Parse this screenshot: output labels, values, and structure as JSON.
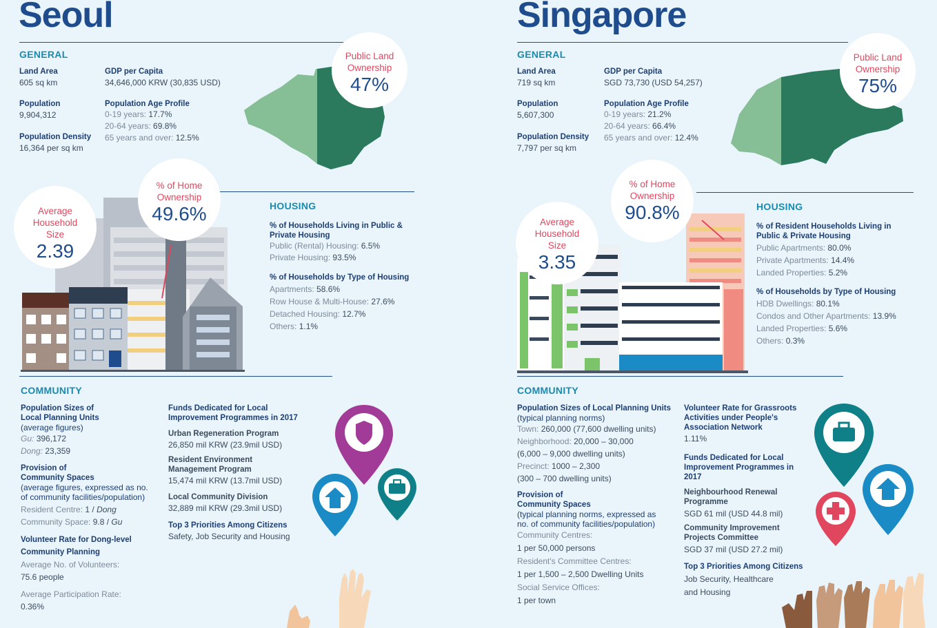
{
  "seoul": {
    "city": "Seoul",
    "general": {
      "heading": "GENERAL",
      "land_area_label": "Land Area",
      "land_area": "605 sq km",
      "population_label": "Population",
      "population": "9,904,312",
      "density_label": "Population Density",
      "density": "16,364 per sq km",
      "gdp_label": "GDP per Capita",
      "gdp": "34,646,000 KRW (30,835 USD)",
      "age_label": "Population Age Profile",
      "age1_label": "0-19 years:",
      "age1": "17.7%",
      "age2_label": "20-64 years:",
      "age2": "69.8%",
      "age3_label": "65 years and over:",
      "age3": "12.5%"
    },
    "land_ownership": {
      "label_line1": "Public Land",
      "label_line2": "Ownership",
      "value": "47%"
    },
    "home_ownership": {
      "label_line1": "% of Home",
      "label_line2": "Ownership",
      "value": "49.6%"
    },
    "household_size": {
      "label_line1": "Average",
      "label_line2": "Household",
      "label_line3": "Size",
      "value": "2.39"
    },
    "housing": {
      "heading": "HOUSING",
      "q1_line1": "% of Households Living in Public &",
      "q1_line2": "Private Housing",
      "q1_items": [
        {
          "label": "Public (Rental) Housing:",
          "value": "6.5%"
        },
        {
          "label": "Private Housing:",
          "value": "93.5%"
        }
      ],
      "q2": "% of Households by Type of Housing",
      "q2_items": [
        {
          "label": "Apartments:",
          "value": "58.6%"
        },
        {
          "label": "Row House & Multi-House:",
          "value": "27.6%"
        },
        {
          "label": "Detached Housing:",
          "value": "12.7%"
        },
        {
          "label": "Others:",
          "value": "1.1%"
        }
      ]
    },
    "community": {
      "heading": "COMMUNITY",
      "pop_line1": "Population Sizes of",
      "pop_line2": "Local Planning Units",
      "pop_note": "(average figures)",
      "gu_label": "Gu:",
      "gu": "396,172",
      "dong_label": "Dong:",
      "dong": "23,359",
      "prov_line1": "Provision of",
      "prov_line2": "Community Spaces",
      "prov_note1": "(average figures, expressed as no.",
      "prov_note2": "of community facilities/population)",
      "rc_label": "Resident Centre:",
      "rc_value": "1 /",
      "rc_unit": "Dong",
      "cs_label": "Community Space:",
      "cs_value": "9.8 /",
      "cs_unit": "Gu",
      "vol_line1": "Volunteer Rate for Dong-level",
      "vol_line2": "Community Planning",
      "avg_vol_label": "Average No. of Volunteers:",
      "avg_vol": "75.6 people",
      "avg_part_label": "Average Participation Rate:",
      "avg_part": "0.36%",
      "funds_line1": "Funds Dedicated for Local",
      "funds_line2": "Improvement Programmes in 2017",
      "prog1": "Urban Regeneration Program",
      "prog1_value": "26,850 mil KRW (23.9mil USD)",
      "prog2_line1": "Resident Environment",
      "prog2_line2": "Management Program",
      "prog2_value": "15,474 mil KRW (13.7mil USD)",
      "prog3": "Local Community Division",
      "prog3_value": "32,889 mil KRW (29.3mil USD)",
      "top3_label": "Top 3 Priorities Among Citizens",
      "top3": "Safety, Job Security and Housing"
    }
  },
  "singapore": {
    "city": "Singapore",
    "general": {
      "heading": "GENERAL",
      "land_area_label": "Land Area",
      "land_area": "719 sq km",
      "population_label": "Population",
      "population": "5,607,300",
      "density_label": "Population Density",
      "density": "7,797 per sq km",
      "gdp_label": "GDP per Capita",
      "gdp": "SGD 73,730 (USD 54,257)",
      "age_label": "Population Age Profile",
      "age1_label": "0-19 years:",
      "age1": "21.2%",
      "age2_label": "20-64 years:",
      "age2": "66.4%",
      "age3_label": "65 years and over:",
      "age3": "12.4%"
    },
    "land_ownership": {
      "label_line1": "Public Land",
      "label_line2": "Ownership",
      "value": "75%"
    },
    "home_ownership": {
      "label_line1": "% of Home",
      "label_line2": "Ownership",
      "value": "90.8%"
    },
    "household_size": {
      "label_line1": "Average",
      "label_line2": "Household",
      "label_line3": "Size",
      "value": "3.35"
    },
    "housing": {
      "heading": "HOUSING",
      "q1_line1": "% of Resident Households Living in",
      "q1_line2": "Public & Private Housing",
      "q1_items": [
        {
          "label": "Public Apartments:",
          "value": "80.0%"
        },
        {
          "label": "Private Apartments:",
          "value": "14.4%"
        },
        {
          "label": "Landed Properties:",
          "value": "5.2%"
        }
      ],
      "q2": "% of Households by Type of Housing",
      "q2_items": [
        {
          "label": "HDB Dwellings:",
          "value": "80.1%"
        },
        {
          "label": "Condos and Other Apartments:",
          "value": "13.9%"
        },
        {
          "label": "Landed Properties:",
          "value": "5.6%"
        },
        {
          "label": "Others:",
          "value": "0.3%"
        }
      ]
    },
    "community": {
      "heading": "COMMUNITY",
      "pop_label": "Population Sizes of Local Planning Units",
      "pop_note": "(typical planning norms)",
      "town_label": "Town:",
      "town": "260,000 (77,600 dwelling units)",
      "nbhd_label": "Neighborhood:",
      "nbhd": "20,000 – 30,000",
      "nbhd_units": "(6,000 – 9,000 dwelling units)",
      "precinct_label": "Precinct:",
      "precinct": "1000 – 2,300",
      "precinct_units": "(300 – 700 dwelling units)",
      "prov_line1": "Provision of",
      "prov_line2": "Community Spaces",
      "prov_note1": "(typical planning norms, expressed as",
      "prov_note2": "no. of community facilities/population)",
      "cc_label": "Community Centres:",
      "cc": "1 per 50,000 persons",
      "rcc_label": "Resident's Committee Centres:",
      "rcc": "1 per 1,500 –  2,500 Dwelling Units",
      "sso_label": "Social Service Offices:",
      "sso": "1 per town",
      "vol_line1": "Volunteer Rate for Grassroots",
      "vol_line2": "Activities under People's",
      "vol_line3": "Association Network",
      "vol_rate": "1.11%",
      "funds_line1": "Funds Dedicated for Local",
      "funds_line2": "Improvement Programmes in",
      "funds_line3": "2017",
      "prog1_line1": "Neighbourhood Renewal",
      "prog1_line2": "Programme",
      "prog1_value": "SGD 61 mil (USD 44.8 mil)",
      "prog2_line1": "Community Improvement",
      "prog2_line2": "Projects Committee",
      "prog2_value": "SGD 37 mil (USD 27.2 mil)",
      "top3_label": "Top 3 Priorities Among Citizens",
      "top3_line1": "Job Security, Healthcare",
      "top3_line2": "and Housing"
    }
  },
  "colors": {
    "navy": "#1e4c8c",
    "teal_heading": "#1a8bb0",
    "pink": "#e0475e",
    "map_light": "#86be96",
    "map_dark": "#2b7a5e",
    "pin_purple": "#a23a97",
    "pin_blue": "#1a8bc4",
    "pin_teal": "#0f8088",
    "pin_red": "#e0475e"
  },
  "icons": [
    "shield-icon",
    "house-icon",
    "briefcase-icon",
    "medical-cross-icon",
    "hands-icon",
    "map-icon",
    "buildings-icon"
  ]
}
